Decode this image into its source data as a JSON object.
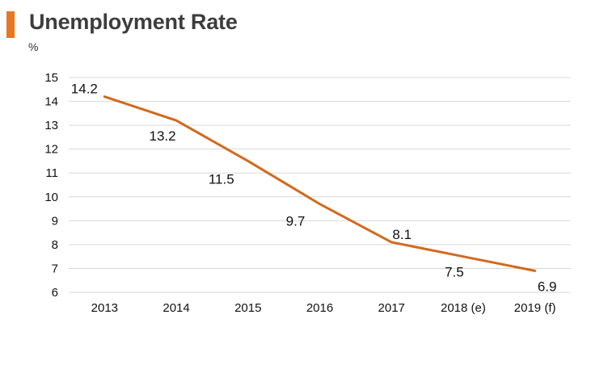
{
  "title": "Unemployment Rate",
  "unit": "%",
  "colors": {
    "accent": "#E87722",
    "line": "#D2691E",
    "grid": "#D9D9D9"
  },
  "chart_data": {
    "type": "line",
    "title": "Unemployment Rate",
    "ylabel": "%",
    "xlabel": "",
    "categories": [
      "2013",
      "2014",
      "2015",
      "2016",
      "2017",
      "2018 (e)",
      "2019 (f)"
    ],
    "series": [
      {
        "values": [
          14.2,
          13.2,
          11.5,
          9.7,
          8.1,
          7.5,
          6.9
        ]
      }
    ],
    "data_labels": [
      "14.2",
      "13.2",
      "11.5",
      "9.7",
      "8.1",
      "7.5",
      "6.9"
    ],
    "ylim": [
      6,
      15
    ],
    "yticks": [
      "6",
      "7",
      "8",
      "9",
      "10",
      "11",
      "12",
      "13",
      "14",
      "15"
    ],
    "grid": true,
    "legend": "none"
  }
}
